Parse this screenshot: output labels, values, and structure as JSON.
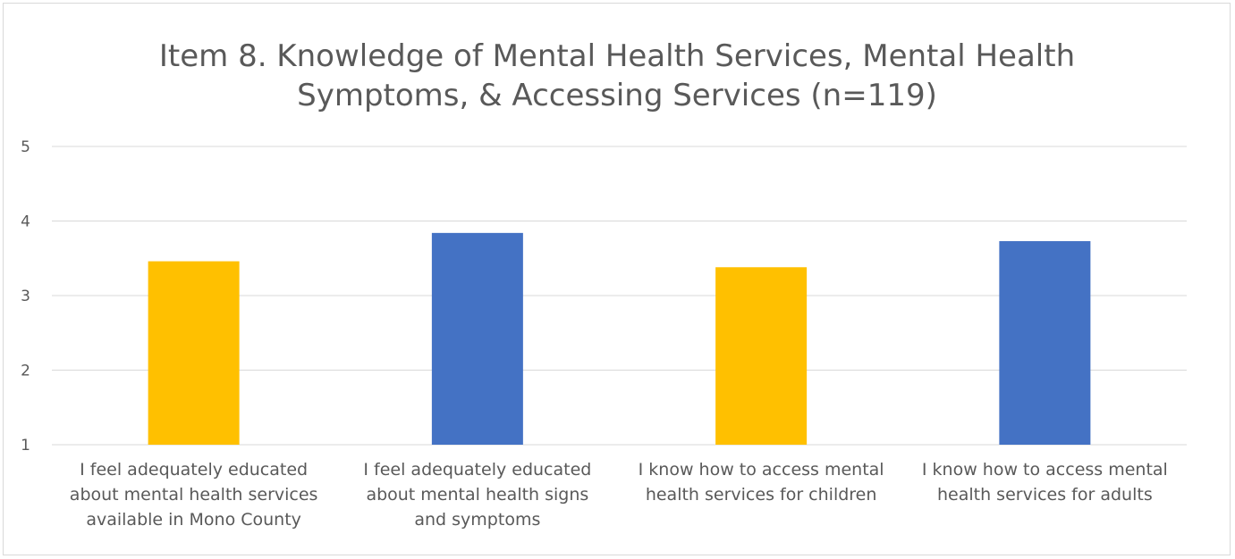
{
  "chart_data": {
    "type": "bar",
    "title_lines": [
      "Item 8. Knowledge of Mental Health Services, Mental Health",
      "Symptoms, & Accessing Services (n=119)"
    ],
    "categories": [
      [
        "I feel adequately educated",
        "about mental health services",
        "available in Mono County"
      ],
      [
        "I feel adequately educated",
        "about mental health signs",
        "and symptoms"
      ],
      [
        "I know how to access mental",
        "health services for children"
      ],
      [
        "I know how to access mental",
        "health services for adults"
      ]
    ],
    "values": [
      3.46,
      3.84,
      3.38,
      3.73
    ],
    "bar_colors": [
      "#FFC000",
      "#4472C4",
      "#FFC000",
      "#4472C4"
    ],
    "ylim": [
      1,
      5
    ],
    "yticks": [
      "1",
      "2",
      "3",
      "4",
      "5"
    ],
    "grid": true,
    "gridline_color": "#d9d9d9"
  }
}
